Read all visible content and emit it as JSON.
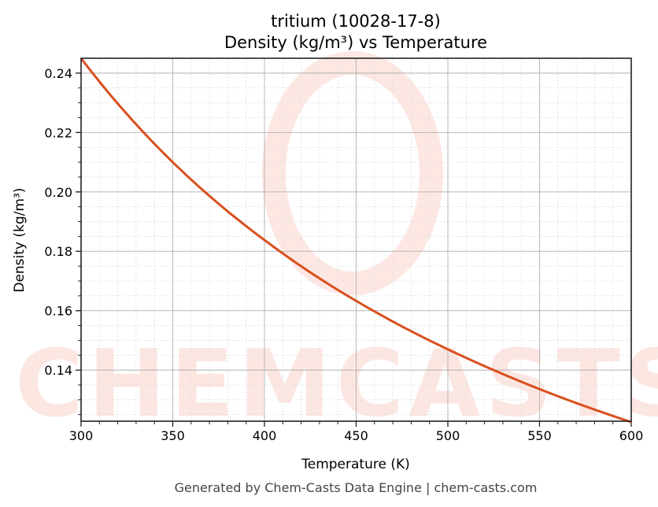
{
  "chart_data": {
    "type": "line",
    "title_line1": "tritium (10028-17-8)",
    "title_line2": "Density (kg/m³) vs Temperature",
    "xlabel": "Temperature (K)",
    "ylabel": "Density (kg/m³)",
    "xlim": [
      300,
      600
    ],
    "ylim": [
      0.1228,
      0.245
    ],
    "xticks": [
      300,
      350,
      400,
      450,
      500,
      550,
      600
    ],
    "yticks": [
      0.14,
      0.16,
      0.18,
      0.2,
      0.22,
      0.24
    ],
    "ytick_labels": [
      "0.14",
      "0.16",
      "0.18",
      "0.20",
      "0.22",
      "0.24"
    ],
    "grid": true,
    "series": [
      {
        "name": "Density",
        "color": "#d9501e",
        "x": [
          300,
          325,
          350,
          375,
          400,
          425,
          450,
          475,
          500,
          525,
          550,
          575,
          600
        ],
        "y": [
          0.245,
          0.2262,
          0.21,
          0.196,
          0.1838,
          0.1729,
          0.1633,
          0.1547,
          0.147,
          0.14,
          0.1336,
          0.1278,
          0.1225
        ]
      }
    ]
  },
  "watermark": "CHEMCASTS",
  "footer": "Generated by Chem-Casts Data Engine | chem-casts.com"
}
